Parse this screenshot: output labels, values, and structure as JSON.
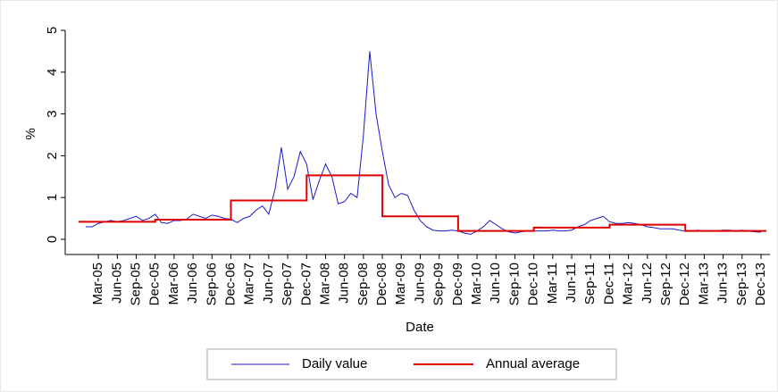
{
  "chart_data": {
    "type": "line",
    "xlabel": "Date",
    "ylabel": "%",
    "categories": [
      null,
      null,
      "Mar-05",
      null,
      null,
      "Jun-05",
      null,
      null,
      "Sep-05",
      null,
      null,
      "Dec-05",
      null,
      null,
      "Mar-06",
      null,
      null,
      "Jun-06",
      null,
      null,
      "Sep-06",
      null,
      null,
      "Dec-06",
      null,
      null,
      "Mar-07",
      null,
      null,
      "Jun-07",
      null,
      null,
      "Sep-07",
      null,
      null,
      "Dec-07",
      null,
      null,
      "Mar-08",
      null,
      null,
      "Jun-08",
      null,
      null,
      "Sep-08",
      null,
      null,
      "Dec-08",
      null,
      null,
      "Mar-09",
      null,
      null,
      "Jun-09",
      null,
      null,
      "Sep-09",
      null,
      null,
      "Dec-09",
      null,
      null,
      "Mar-10",
      null,
      null,
      "Jun-10",
      null,
      null,
      "Sep-10",
      null,
      null,
      "Dec-10",
      null,
      null,
      "Mar-11",
      null,
      null,
      "Jun-11",
      null,
      null,
      "Sep-11",
      null,
      null,
      "Dec-11",
      null,
      null,
      "Mar-12",
      null,
      null,
      "Jun-12",
      null,
      null,
      "Sep-12",
      null,
      null,
      "Dec-12",
      null,
      null,
      "Mar-13",
      null,
      null,
      "Jun-13",
      null,
      null,
      "Sep-13",
      null,
      null,
      "Dec-13"
    ],
    "series": [
      {
        "name": "Daily value",
        "color": "#1a1acc",
        "values": [
          0.3,
          0.3,
          0.38,
          0.42,
          0.45,
          0.42,
          0.45,
          0.5,
          0.55,
          0.45,
          0.5,
          0.6,
          0.4,
          0.38,
          0.45,
          0.45,
          0.48,
          0.6,
          0.55,
          0.5,
          0.58,
          0.55,
          0.5,
          0.48,
          0.4,
          0.5,
          0.55,
          0.7,
          0.8,
          0.6,
          1.2,
          2.2,
          1.2,
          1.5,
          2.1,
          1.8,
          0.95,
          1.4,
          1.8,
          1.5,
          0.85,
          0.9,
          1.1,
          1.0,
          2.5,
          4.5,
          3.0,
          2.1,
          1.3,
          1.0,
          1.1,
          1.05,
          0.7,
          0.45,
          0.3,
          0.22,
          0.2,
          0.2,
          0.22,
          0.2,
          0.15,
          0.12,
          0.2,
          0.3,
          0.45,
          0.35,
          0.25,
          0.18,
          0.15,
          0.18,
          0.2,
          0.2,
          0.2,
          0.2,
          0.22,
          0.2,
          0.2,
          0.22,
          0.3,
          0.35,
          0.45,
          0.5,
          0.55,
          0.42,
          0.38,
          0.38,
          0.4,
          0.38,
          0.35,
          0.3,
          0.28,
          0.25,
          0.25,
          0.25,
          0.22,
          0.2,
          0.2,
          0.22,
          0.2,
          0.2,
          0.2,
          0.22,
          0.22,
          0.2,
          0.22,
          0.2,
          0.18,
          0.17
        ]
      },
      {
        "name": "Annual average",
        "color": "#e00000",
        "drawstyle": "steps",
        "values": [
          0.42,
          0.42,
          0.42,
          0.42,
          0.42,
          0.42,
          0.42,
          0.42,
          0.42,
          0.42,
          0.42,
          0.42,
          0.47,
          0.47,
          0.47,
          0.47,
          0.47,
          0.47,
          0.47,
          0.47,
          0.47,
          0.47,
          0.47,
          0.47,
          0.93,
          0.93,
          0.93,
          0.93,
          0.93,
          0.93,
          0.93,
          0.93,
          0.93,
          0.93,
          0.93,
          0.93,
          1.53,
          1.53,
          1.53,
          1.53,
          1.53,
          1.53,
          1.53,
          1.53,
          1.53,
          1.53,
          1.53,
          1.53,
          0.55,
          0.55,
          0.55,
          0.55,
          0.55,
          0.55,
          0.55,
          0.55,
          0.55,
          0.55,
          0.55,
          0.55,
          0.2,
          0.2,
          0.2,
          0.2,
          0.2,
          0.2,
          0.2,
          0.2,
          0.2,
          0.2,
          0.2,
          0.2,
          0.28,
          0.28,
          0.28,
          0.28,
          0.28,
          0.28,
          0.28,
          0.28,
          0.28,
          0.28,
          0.28,
          0.28,
          0.35,
          0.35,
          0.35,
          0.35,
          0.35,
          0.35,
          0.35,
          0.35,
          0.35,
          0.35,
          0.35,
          0.35,
          0.2,
          0.2,
          0.2,
          0.2,
          0.2,
          0.2,
          0.2,
          0.2,
          0.2,
          0.2,
          0.2,
          0.2
        ]
      }
    ],
    "ylim": [
      0,
      5
    ],
    "yticks": [
      0,
      1,
      2,
      3,
      4,
      5
    ],
    "grid": false,
    "legend": "bottom"
  }
}
